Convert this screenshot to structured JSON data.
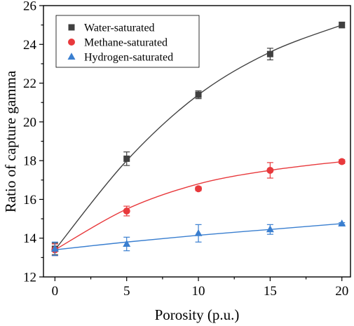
{
  "chart_data": {
    "type": "scatter",
    "title": "",
    "xlabel": "Porosity (p.u.)",
    "ylabel": "Ratio of capture gamma",
    "xlim": [
      -0.8,
      20.6
    ],
    "ylim": [
      12,
      26
    ],
    "xticks": [
      0,
      5,
      10,
      15,
      20
    ],
    "yticks": [
      12,
      14,
      16,
      18,
      20,
      22,
      24,
      26
    ],
    "grid": false,
    "legend_position": "top-left",
    "x": [
      0,
      5,
      10,
      15,
      20
    ],
    "series": [
      {
        "name": "Water-saturated",
        "marker": "square",
        "color": "#404040",
        "values": [
          13.45,
          18.1,
          21.4,
          23.5,
          25.0
        ],
        "errors": [
          0.3,
          0.35,
          0.2,
          0.3,
          0.15
        ],
        "fit": [
          13.4,
          18.0,
          21.4,
          23.6,
          25.0
        ]
      },
      {
        "name": "Methane-saturated",
        "marker": "circle",
        "color": "#e8393c",
        "values": [
          13.4,
          15.4,
          16.55,
          17.5,
          17.95
        ],
        "errors": [
          0.3,
          0.25,
          0.1,
          0.4,
          0.1
        ],
        "fit": [
          13.4,
          15.5,
          16.8,
          17.5,
          17.95
        ]
      },
      {
        "name": "Hydrogen-saturated",
        "marker": "triangle",
        "color": "#3a7fd0",
        "values": [
          13.45,
          13.7,
          14.25,
          14.45,
          14.75
        ],
        "errors": [
          0.35,
          0.35,
          0.45,
          0.25,
          0.05
        ],
        "fit": [
          13.4,
          13.8,
          14.15,
          14.45,
          14.75
        ]
      }
    ]
  }
}
